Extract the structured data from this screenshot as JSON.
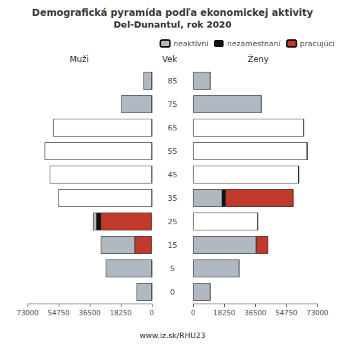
{
  "chart_data": {
    "type": "bar",
    "orientation": "horizontal",
    "stacked": true,
    "grid": false,
    "legend": "upper right",
    "title": "Demografická pyramída podľa ekonomickej aktivity",
    "subtitle": "Del-Dunantul, rok 2020",
    "annotations": [
      "www.iz.sk/RHU23"
    ],
    "y_label": "Vek",
    "categories": [
      0,
      5,
      15,
      25,
      35,
      45,
      55,
      65,
      75,
      85
    ],
    "panels": [
      {
        "title": "Muži",
        "xlim": [
          0,
          73000
        ],
        "xticks": [
          0,
          18250,
          36500,
          54750,
          73000
        ],
        "series": [
          {
            "name": "pracujúci",
            "color": "#c0392b",
            "values": [
              0,
              0,
              10000,
              30000,
              0,
              0,
              0,
              0,
              0,
              0
            ]
          },
          {
            "name": "nezamestnaní",
            "color": "#111111",
            "values": [
              0,
              0,
              0,
              2500,
              0,
              0,
              0,
              0,
              0,
              0
            ]
          },
          {
            "name": "neaktívni",
            "color": "#b0b8c1",
            "colors": [
              "#b0b8c1",
              "#b0b8c1",
              "#b0b8c1",
              "#b0b8c1",
              "#ffffff",
              "#ffffff",
              "#ffffff",
              "#ffffff",
              "#b0b8c1",
              "#b0b8c1"
            ],
            "values": [
              9000,
              27000,
              20000,
              2000,
              55000,
              60000,
              63000,
              58000,
              18000,
              5000
            ]
          }
        ]
      },
      {
        "title": "Ženy",
        "xlim": [
          0,
          73000
        ],
        "xticks": [
          0,
          18250,
          36500,
          54750,
          73000
        ],
        "series": [
          {
            "name": "neaktívni",
            "color": "#b0b8c1",
            "colors": [
              "#b0b8c1",
              "#b0b8c1",
              "#b0b8c1",
              "#ffffff",
              "#b0b8c1",
              "#ffffff",
              "#ffffff",
              "#ffffff",
              "#b0b8c1",
              "#b0b8c1"
            ],
            "values": [
              10000,
              27000,
              37000,
              38000,
              17000,
              62000,
              67000,
              65000,
              40000,
              10000
            ]
          },
          {
            "name": "nezamestnaní",
            "color": "#111111",
            "values": [
              0,
              0,
              0,
              0,
              2000,
              0,
              0,
              0,
              0,
              0
            ]
          },
          {
            "name": "pracujúci",
            "color": "#c0392b",
            "values": [
              0,
              0,
              7000,
              0,
              40000,
              0,
              0,
              0,
              0,
              0
            ]
          }
        ]
      }
    ]
  }
}
